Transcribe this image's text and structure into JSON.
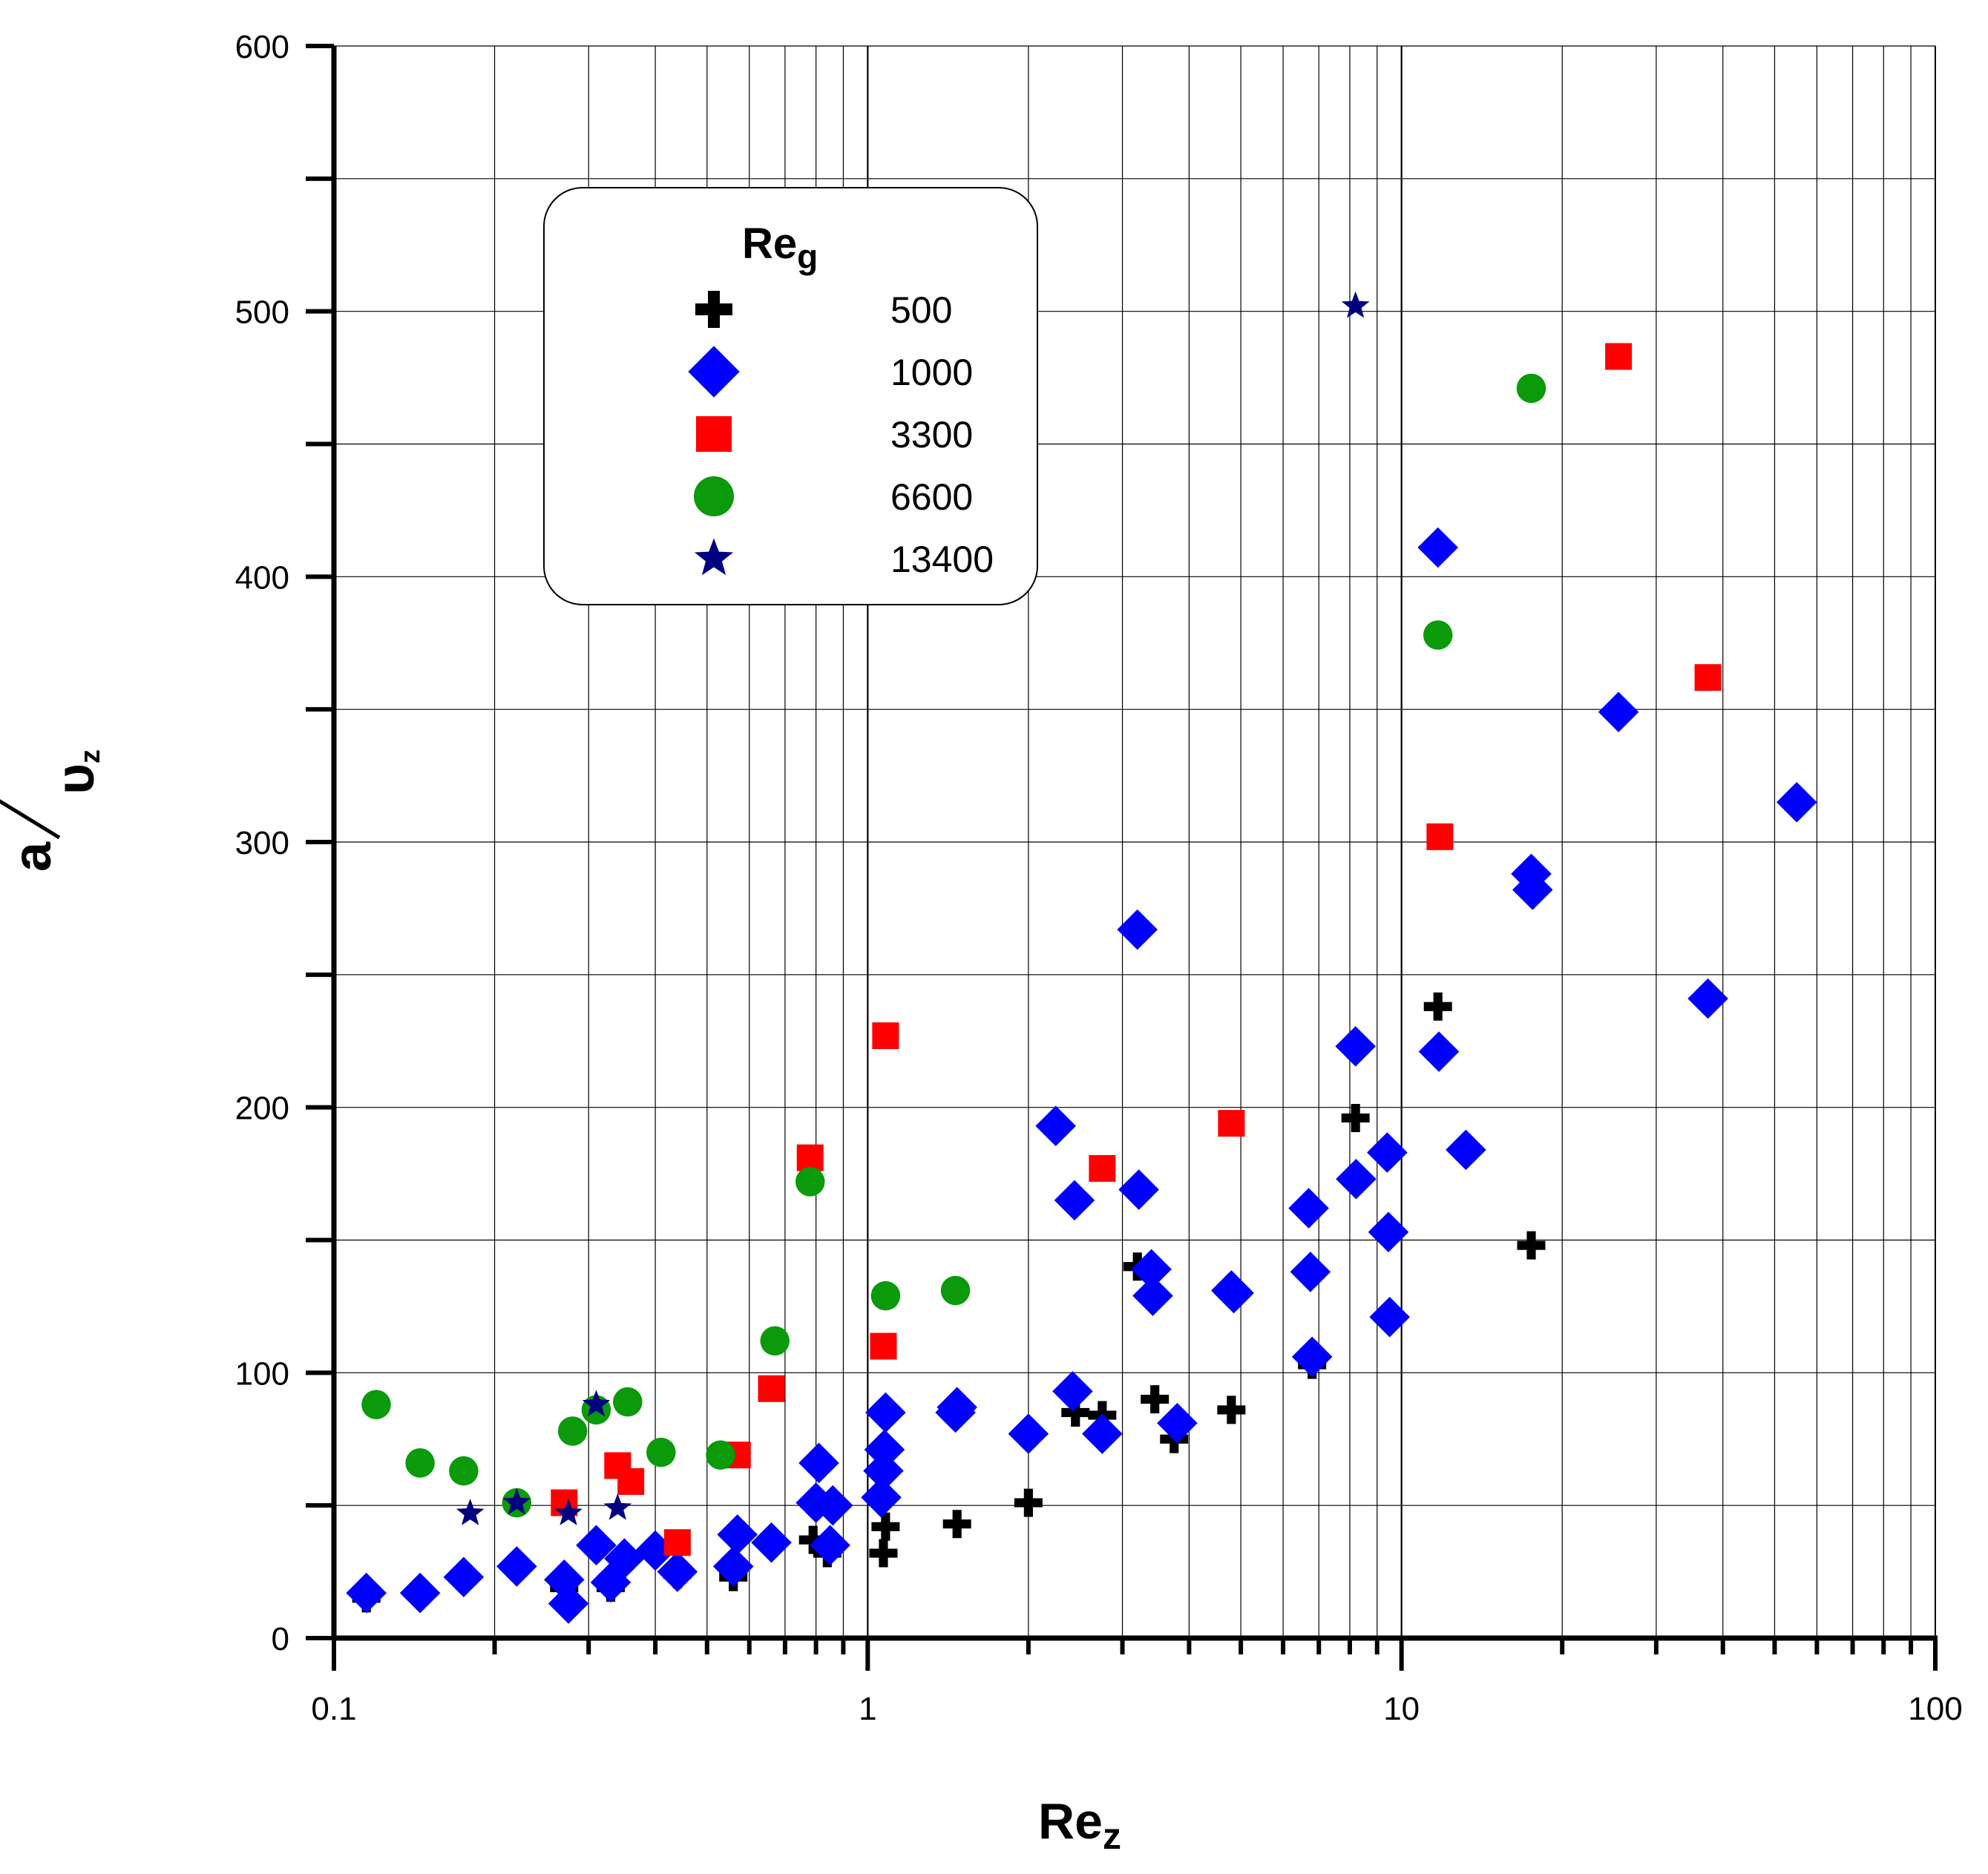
{
  "chart_data": {
    "type": "scatter",
    "xscale": "log",
    "xlim": [
      0.1,
      100
    ],
    "ylim": [
      0,
      600
    ],
    "grid": true,
    "x_ticks": [
      "0.1",
      "1",
      "10",
      "100"
    ],
    "y_ticks": [
      "0",
      "100",
      "200",
      "300",
      "400",
      "500",
      "600"
    ],
    "xlabel": {
      "main": "Re",
      "sub": "z"
    },
    "ylabel": {
      "num": "a",
      "den": "υ",
      "sub": "z"
    },
    "legend": {
      "title_main": "Re",
      "title_sub": "g",
      "position": "upper-left"
    },
    "series": [
      {
        "name": "500",
        "marker": "plus",
        "color": "#000000",
        "points": [
          [
            0.115,
            15
          ],
          [
            0.27,
            19
          ],
          [
            0.33,
            19
          ],
          [
            0.44,
            24
          ],
          [
            0.56,
            23
          ],
          [
            0.79,
            37
          ],
          [
            0.84,
            32
          ],
          [
            1.07,
            32
          ],
          [
            1.08,
            42
          ],
          [
            1.47,
            43
          ],
          [
            2.0,
            51
          ],
          [
            2.45,
            85
          ],
          [
            2.75,
            84
          ],
          [
            3.2,
            140
          ],
          [
            3.45,
            90
          ],
          [
            3.75,
            75
          ],
          [
            4.8,
            86
          ],
          [
            6.8,
            103
          ],
          [
            8.2,
            196
          ],
          [
            11.7,
            238
          ],
          [
            17.5,
            148
          ]
        ]
      },
      {
        "name": "1000",
        "marker": "diamond",
        "color": "#0000ff",
        "points": [
          [
            0.115,
            17
          ],
          [
            0.145,
            17
          ],
          [
            0.175,
            23
          ],
          [
            0.22,
            27
          ],
          [
            0.27,
            22
          ],
          [
            0.275,
            13
          ],
          [
            0.31,
            35
          ],
          [
            0.33,
            21
          ],
          [
            0.35,
            30
          ],
          [
            0.4,
            33
          ],
          [
            0.44,
            25
          ],
          [
            0.56,
            27
          ],
          [
            0.57,
            39
          ],
          [
            0.66,
            36
          ],
          [
            0.8,
            51
          ],
          [
            0.81,
            66
          ],
          [
            0.85,
            35
          ],
          [
            0.86,
            50
          ],
          [
            1.06,
            53
          ],
          [
            1.07,
            63
          ],
          [
            1.075,
            71
          ],
          [
            1.08,
            85
          ],
          [
            1.46,
            85
          ],
          [
            1.47,
            87
          ],
          [
            2.0,
            77
          ],
          [
            2.25,
            193
          ],
          [
            2.42,
            93
          ],
          [
            2.44,
            165
          ],
          [
            2.75,
            77
          ],
          [
            3.2,
            267
          ],
          [
            3.22,
            169
          ],
          [
            3.4,
            139
          ],
          [
            3.42,
            129
          ],
          [
            3.8,
            81
          ],
          [
            4.8,
            131
          ],
          [
            4.85,
            130
          ],
          [
            6.7,
            162
          ],
          [
            6.75,
            138
          ],
          [
            6.8,
            106
          ],
          [
            8.2,
            223
          ],
          [
            8.22,
            173
          ],
          [
            9.4,
            183
          ],
          [
            9.45,
            153
          ],
          [
            9.5,
            121
          ],
          [
            11.7,
            411
          ],
          [
            11.75,
            221
          ],
          [
            13.2,
            184
          ],
          [
            17.5,
            288
          ],
          [
            17.6,
            282
          ],
          [
            25.5,
            349
          ],
          [
            37.5,
            241
          ],
          [
            55,
            315
          ]
        ]
      },
      {
        "name": "3300",
        "marker": "square",
        "color": "#ff0000",
        "points": [
          [
            0.27,
            51
          ],
          [
            0.34,
            65
          ],
          [
            0.36,
            59
          ],
          [
            0.44,
            36
          ],
          [
            0.57,
            69
          ],
          [
            0.66,
            94
          ],
          [
            0.78,
            181
          ],
          [
            1.07,
            110
          ],
          [
            1.08,
            227
          ],
          [
            2.75,
            177
          ],
          [
            4.8,
            194
          ],
          [
            11.8,
            302
          ],
          [
            25.5,
            483
          ],
          [
            37.5,
            362
          ]
        ]
      },
      {
        "name": "6600",
        "marker": "circle",
        "color": "#0a9a0a",
        "points": [
          [
            0.12,
            88
          ],
          [
            0.145,
            66
          ],
          [
            0.175,
            63
          ],
          [
            0.22,
            51
          ],
          [
            0.28,
            78
          ],
          [
            0.31,
            86
          ],
          [
            0.355,
            89
          ],
          [
            0.41,
            70
          ],
          [
            0.53,
            69
          ],
          [
            0.67,
            112
          ],
          [
            0.78,
            172
          ],
          [
            1.08,
            129
          ],
          [
            1.46,
            131
          ],
          [
            11.7,
            378
          ],
          [
            17.5,
            471
          ]
        ]
      },
      {
        "name": "13400",
        "marker": "star",
        "color": "#000080",
        "points": [
          [
            0.18,
            47
          ],
          [
            0.22,
            51
          ],
          [
            0.275,
            47
          ],
          [
            0.31,
            88
          ],
          [
            0.34,
            49
          ],
          [
            8.2,
            502
          ]
        ]
      }
    ]
  }
}
